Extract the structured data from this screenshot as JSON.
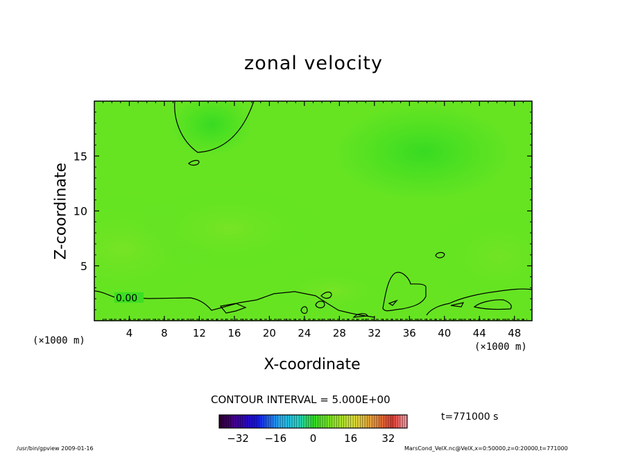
{
  "chart_data": {
    "type": "heatmap",
    "title": "zonal velocity",
    "xlabel": "X-coordinate",
    "ylabel": "Z-coordinate",
    "x_unit": "(×1000 m)",
    "xlim": [
      0,
      50
    ],
    "ylim": [
      0,
      20
    ],
    "x_ticks": [
      4,
      8,
      12,
      16,
      20,
      24,
      28,
      32,
      36,
      40,
      44,
      48
    ],
    "y_ticks": [
      5,
      10,
      15
    ],
    "contour_label": "0.00",
    "contour_interval": "CONTOUR INTERVAL = 5.000E+00",
    "colorbar": {
      "range": [
        -40,
        40
      ],
      "ticks": [
        -32,
        -16,
        0,
        16,
        32
      ]
    },
    "time_label": "t=771000 s",
    "colors": {
      "field_base": "#33dd22",
      "field_light": "#66e422",
      "contour": "#000000"
    }
  },
  "footer": {
    "left": "/usr/bin/gpview   2009-01-16",
    "right": "MarsCond_VelX.nc@VelX,x=0:50000,z=0:20000,t=771000"
  }
}
